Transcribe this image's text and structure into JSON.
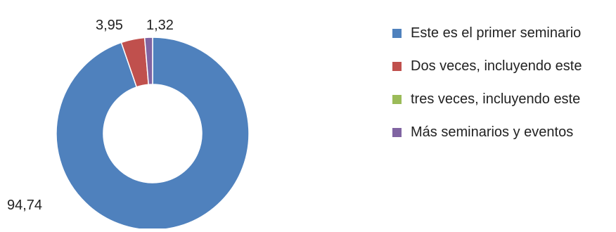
{
  "chart_data": {
    "type": "pie",
    "variant": "doughnut",
    "title": "",
    "categories": [
      "Este es el primer seminario",
      "Dos veces, incluyendo este",
      "tres veces, incluyendo este",
      "Más seminarios y eventos"
    ],
    "values": [
      94.74,
      3.95,
      0,
      1.32
    ],
    "data_labels": [
      "94,74",
      "3,95",
      "",
      "1,32"
    ],
    "colors": [
      "#4f81bd",
      "#c0504d",
      "#9bbb59",
      "#8064a2"
    ],
    "legend_position": "right"
  }
}
